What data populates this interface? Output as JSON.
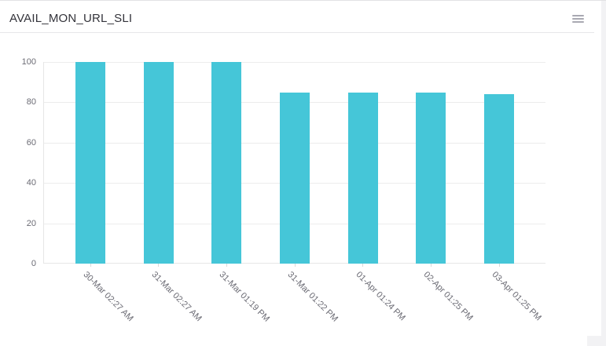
{
  "header": {
    "title": "AVAIL_MON_URL_SLI",
    "menu_icon": "hamburger-menu"
  },
  "chart_data": {
    "type": "bar",
    "title": "AVAIL_MON_URL_SLI",
    "categories": [
      "30-Mar 02:27 AM",
      "31-Mar 02:27 AM",
      "31-Mar 01:19 PM",
      "31-Mar 01:22 PM",
      "01-Apr 01:24 PM",
      "02-Apr 01:25 PM",
      "03-Apr 01:25 PM"
    ],
    "values": [
      100,
      100,
      100,
      85,
      85,
      85,
      84
    ],
    "xlabel": "",
    "ylabel": "",
    "ylim": [
      0,
      100
    ],
    "yticks": [
      0,
      20,
      40,
      60,
      80,
      100
    ],
    "grid": true,
    "legend_position": "none",
    "x_label_rotation_deg": 45
  },
  "colors": {
    "bar": "#45c6d8",
    "grid": "#ececec",
    "axis_line": "#e6e6e6",
    "tick_mark": "#d9d9d9",
    "axis_label": "#6b6b74",
    "title": "#33333a",
    "separator": "#e7e7e9",
    "menu_icon": "#a9a9b2",
    "scrollbar": "#f2f2f4"
  }
}
